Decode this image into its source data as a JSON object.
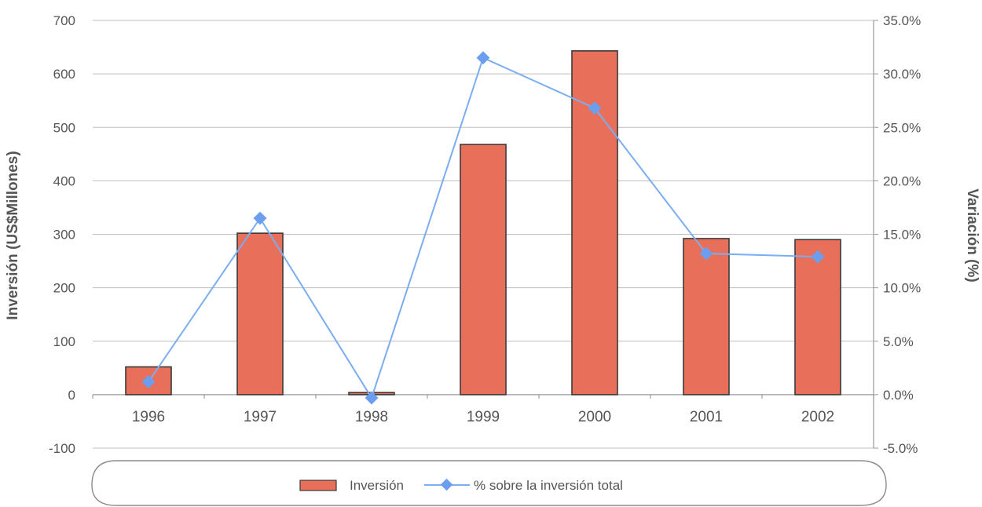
{
  "chart_data": {
    "type": "bar",
    "categories": [
      "1996",
      "1997",
      "1998",
      "1999",
      "2000",
      "2001",
      "2002"
    ],
    "series": [
      {
        "name": "Inversión",
        "type": "bar",
        "axis": "left",
        "values": [
          52,
          302,
          4,
          468,
          643,
          292,
          290
        ]
      },
      {
        "name": "% sobre la inversión total",
        "type": "line",
        "axis": "right",
        "values": [
          1.2,
          16.5,
          -0.3,
          31.5,
          26.8,
          13.2,
          12.9
        ]
      }
    ],
    "ylabel": "Inversión (US$Millones)",
    "y2label": "Variación (%)",
    "ylim": [
      -100,
      700
    ],
    "y2lim": [
      -5,
      35
    ],
    "yticks": [
      "700",
      "600",
      "500",
      "400",
      "300",
      "200",
      "100",
      "0",
      "-100"
    ],
    "y2ticks": [
      "35.0%",
      "30.0%",
      "25.0%",
      "20.0%",
      "15.0%",
      "10.0%",
      "5.0%",
      "0.0%",
      "-5.0%"
    ],
    "grid": true,
    "legend_position": "bottom",
    "colors": {
      "bar_fill": "#e8705a",
      "bar_stroke": "#3a3a3a",
      "line": "#7aaef0",
      "marker": "#6c9ef0",
      "grid": "#bdbdbd",
      "text": "#555555"
    }
  }
}
